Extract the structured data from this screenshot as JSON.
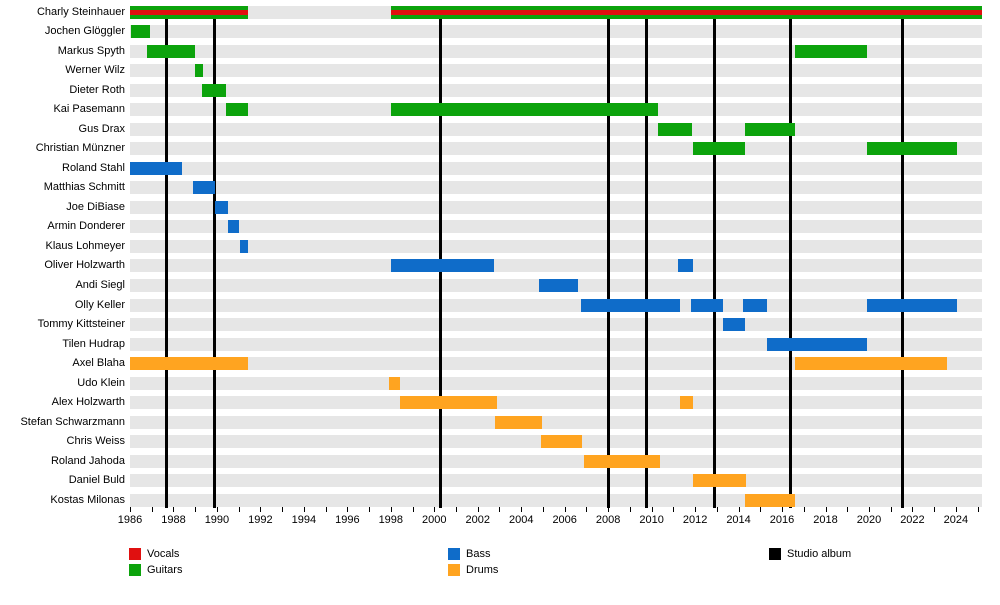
{
  "chart_data": {
    "type": "timeline",
    "title": "",
    "axis": {
      "start": 1986,
      "end": 2025.2,
      "minor_tick_every_years": 1,
      "label_every_years": 2,
      "tick_labels": [
        "1986",
        "1988",
        "1990",
        "1992",
        "1994",
        "1996",
        "1998",
        "2000",
        "2002",
        "2004",
        "2006",
        "2008",
        "2010",
        "2012",
        "2014",
        "2016",
        "2018",
        "2020",
        "2022",
        "2024"
      ]
    },
    "colors": {
      "vocals": "#e01010",
      "guitars": "#0ca30c",
      "bass": "#0f6cc9",
      "drums": "#ffa420",
      "album": "#000000",
      "row_track": "#e6e6e6",
      "background": "#ffffff"
    },
    "albums": {
      "label": "Studio album",
      "years": [
        1987.7,
        1989.9,
        2000.3,
        2008.0,
        2009.75,
        2012.9,
        2016.4,
        2021.55
      ]
    },
    "members": [
      {
        "name": "Charly Steinhauer",
        "roles": [
          "vocals",
          "guitars"
        ],
        "periods": [
          [
            1986.0,
            1991.45
          ],
          [
            1998.0,
            2025.2
          ]
        ]
      },
      {
        "name": "Jochen Glöggler",
        "roles": [
          "guitars"
        ],
        "periods": [
          [
            1986.05,
            1986.9
          ]
        ]
      },
      {
        "name": "Markus Spyth",
        "roles": [
          "guitars"
        ],
        "periods": [
          [
            1986.8,
            1989.0
          ],
          [
            2016.6,
            2019.9
          ]
        ]
      },
      {
        "name": "Werner Wilz",
        "roles": [
          "guitars"
        ],
        "periods": [
          [
            1989.0,
            1989.35
          ]
        ]
      },
      {
        "name": "Dieter Roth",
        "roles": [
          "guitars"
        ],
        "periods": [
          [
            1989.3,
            1990.4
          ]
        ]
      },
      {
        "name": "Kai Pasemann",
        "roles": [
          "guitars"
        ],
        "periods": [
          [
            1990.4,
            1991.45
          ],
          [
            1998.0,
            2010.3
          ]
        ]
      },
      {
        "name": "Gus Drax",
        "roles": [
          "guitars"
        ],
        "periods": [
          [
            2010.3,
            2011.85
          ],
          [
            2014.3,
            2016.6
          ]
        ]
      },
      {
        "name": "Christian Münzner",
        "roles": [
          "guitars"
        ],
        "periods": [
          [
            2011.9,
            2014.3
          ],
          [
            2019.9,
            2024.05
          ]
        ]
      },
      {
        "name": "Roland Stahl",
        "roles": [
          "bass"
        ],
        "periods": [
          [
            1986.0,
            1988.4
          ]
        ]
      },
      {
        "name": "Matthias Schmitt",
        "roles": [
          "bass"
        ],
        "periods": [
          [
            1988.9,
            1989.9
          ]
        ]
      },
      {
        "name": "Joe DiBiase",
        "roles": [
          "bass"
        ],
        "periods": [
          [
            1989.9,
            1990.5
          ]
        ]
      },
      {
        "name": "Armin Donderer",
        "roles": [
          "bass"
        ],
        "periods": [
          [
            1990.5,
            1991.0
          ]
        ]
      },
      {
        "name": "Klaus Lohmeyer",
        "roles": [
          "bass"
        ],
        "periods": [
          [
            1991.05,
            1991.45
          ]
        ]
      },
      {
        "name": "Oliver Holzwarth",
        "roles": [
          "bass"
        ],
        "periods": [
          [
            1998.0,
            2002.75
          ],
          [
            2011.2,
            2011.9
          ]
        ]
      },
      {
        "name": "Andi Siegl",
        "roles": [
          "bass"
        ],
        "periods": [
          [
            2004.8,
            2006.6
          ]
        ]
      },
      {
        "name": "Olly Keller",
        "roles": [
          "bass"
        ],
        "periods": [
          [
            2006.75,
            2011.3
          ],
          [
            2011.8,
            2013.3
          ],
          [
            2014.2,
            2015.3
          ],
          [
            2019.9,
            2024.05
          ]
        ]
      },
      {
        "name": "Tommy Kittsteiner",
        "roles": [
          "bass"
        ],
        "periods": [
          [
            2013.3,
            2014.3
          ]
        ]
      },
      {
        "name": "Tilen Hudrap",
        "roles": [
          "bass"
        ],
        "periods": [
          [
            2015.3,
            2019.9
          ]
        ]
      },
      {
        "name": "Axel Blaha",
        "roles": [
          "drums"
        ],
        "periods": [
          [
            1986.0,
            1991.45
          ],
          [
            2016.6,
            2023.6
          ]
        ]
      },
      {
        "name": "Udo Klein",
        "roles": [
          "drums"
        ],
        "periods": [
          [
            1997.9,
            1998.4
          ]
        ]
      },
      {
        "name": "Alex Holzwarth",
        "roles": [
          "drums"
        ],
        "periods": [
          [
            1998.4,
            2002.9
          ],
          [
            2011.3,
            2011.9
          ]
        ]
      },
      {
        "name": "Stefan Schwarzmann",
        "roles": [
          "drums"
        ],
        "periods": [
          [
            2002.8,
            2004.95
          ]
        ]
      },
      {
        "name": "Chris Weiss",
        "roles": [
          "drums"
        ],
        "periods": [
          [
            2004.9,
            2006.8
          ]
        ]
      },
      {
        "name": "Roland Jahoda",
        "roles": [
          "drums"
        ],
        "periods": [
          [
            2006.9,
            2010.4
          ]
        ]
      },
      {
        "name": "Daniel Buld",
        "roles": [
          "drums"
        ],
        "periods": [
          [
            2011.9,
            2014.35
          ]
        ]
      },
      {
        "name": "Kostas Milonas",
        "roles": [
          "drums"
        ],
        "periods": [
          [
            2014.3,
            2016.6
          ]
        ]
      }
    ],
    "legend": {
      "columns": [
        {
          "items": [
            {
              "label": "Vocals",
              "role": "vocals"
            },
            {
              "label": "Guitars",
              "role": "guitars"
            }
          ]
        },
        {
          "items": [
            {
              "label": "Bass",
              "role": "bass"
            },
            {
              "label": "Drums",
              "role": "drums"
            }
          ]
        },
        {
          "items": [
            {
              "label": "Studio album",
              "role": "album"
            }
          ]
        }
      ]
    }
  }
}
